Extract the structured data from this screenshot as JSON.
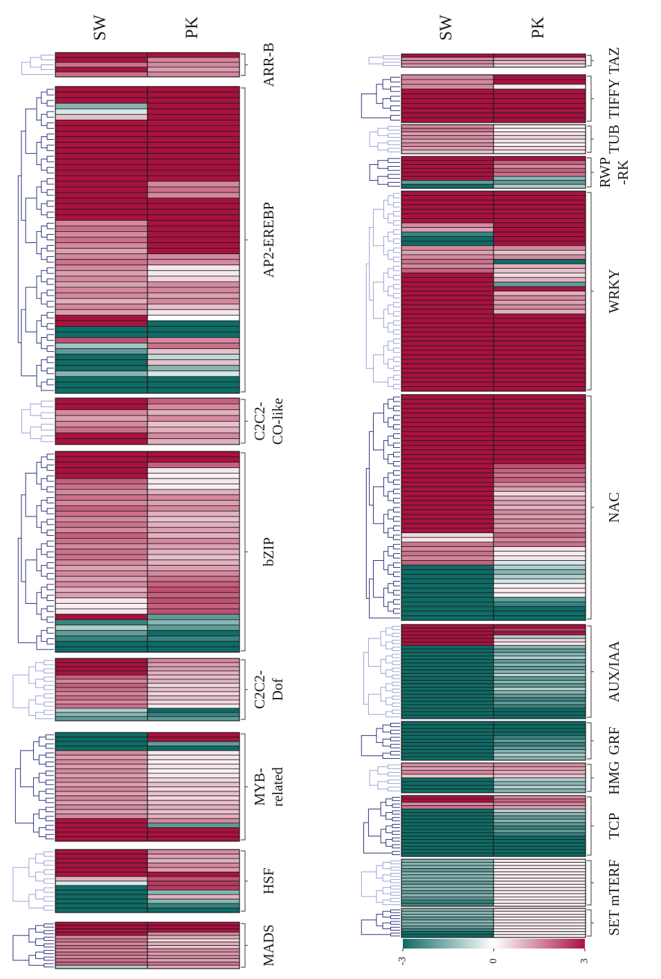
{
  "chart_data": {
    "type": "heatmap",
    "columns": [
      "SW",
      "PK"
    ],
    "color_scale": {
      "min": -3,
      "mid": 0,
      "max": 3,
      "low_color": "#0f6b66",
      "mid_color": "#ffffff",
      "high_color": "#a8123f",
      "ticks": [
        "-3",
        "0",
        "3"
      ]
    },
    "families_left": [
      {
        "name": "ARR-B",
        "label_lines": [
          "ARR-B"
        ],
        "SW": [
          3,
          3,
          1.8,
          3,
          1.8
        ],
        "PK": [
          3,
          1.5,
          1.5,
          1.2,
          1.5
        ]
      },
      {
        "name": "AP2-EREBP",
        "label_lines": [
          "AP2-EREBP"
        ],
        "SW": [
          3,
          3,
          3,
          -1.5,
          -0.5,
          0.8,
          3,
          3,
          3,
          3,
          3,
          3,
          3,
          3,
          3,
          3,
          3,
          3,
          3,
          3,
          3,
          3,
          3,
          3,
          1.5,
          1.8,
          1.5,
          1.8,
          1.5,
          1.2,
          1.5,
          1.8,
          1.5,
          1.2,
          1.5,
          1.2,
          1.5,
          1.5,
          1,
          1.5,
          1.2,
          3,
          3,
          -3,
          -3,
          2.2,
          -1.2,
          -2,
          -3,
          -3,
          -3,
          -1.5,
          -3,
          -3,
          -3
        ],
        "PK": [
          3,
          3,
          3,
          3,
          3,
          3,
          3,
          3,
          3,
          3,
          3,
          3,
          3,
          3,
          3,
          3,
          3,
          1.5,
          1.8,
          1.5,
          3,
          3,
          3,
          3,
          3,
          3,
          3,
          3,
          3,
          3,
          1.5,
          1.5,
          0.3,
          0.3,
          0.5,
          1.5,
          1.5,
          1.2,
          1.5,
          0.8,
          0.3,
          0,
          -3,
          -3,
          -3,
          1.5,
          1.8,
          0.8,
          -0.8,
          0.8,
          -1.5,
          -0.5,
          -3,
          -3,
          -3
        ]
      },
      {
        "name": "C2C2-CO-like",
        "label_lines": [
          "C2C2-",
          "CO-like"
        ],
        "SW": [
          3,
          3,
          1.5,
          1.2,
          1.5,
          1.8,
          3,
          3
        ],
        "PK": [
          2,
          1.5,
          1,
          1.5,
          0.8,
          1,
          1.5,
          1
        ]
      },
      {
        "name": "bZIP",
        "label_lines": [
          "bZIP"
        ],
        "SW": [
          3,
          3,
          3,
          3,
          3,
          2,
          1.8,
          1.5,
          1.8,
          1.5,
          2,
          1.8,
          1.5,
          1.8,
          1.5,
          2,
          1.8,
          1.5,
          1.8,
          1.8,
          1.5,
          1.2,
          1.5,
          1.2,
          1.5,
          1,
          1.2,
          0.3,
          0.2,
          0.3,
          3,
          -2.5,
          -1,
          -2,
          -2.5,
          -3,
          -3
        ],
        "PK": [
          3,
          3,
          2,
          0.3,
          0.2,
          0.3,
          0.2,
          1,
          1.5,
          1.2,
          1.5,
          1,
          0.8,
          1,
          1.2,
          1,
          1.5,
          1.2,
          1,
          0.8,
          1,
          1.2,
          1.5,
          1.8,
          2,
          2.2,
          2,
          2.2,
          2,
          2.2,
          -2,
          -1.5,
          -2,
          -3,
          -2.5,
          -3,
          -3
        ]
      },
      {
        "name": "C2C2-Dof",
        "label_lines": [
          "C2C2-",
          "Dof"
        ],
        "SW": [
          3,
          3,
          3,
          3,
          2,
          1.5,
          2,
          1.8,
          1.5,
          1.8,
          1.5,
          1.8,
          -1,
          -1.5,
          -2
        ],
        "PK": [
          1.5,
          1.2,
          1.2,
          1,
          0.8,
          1,
          0.5,
          0.8,
          0.5,
          0.8,
          0.5,
          0.3,
          -3,
          -2.5,
          -2
        ]
      },
      {
        "name": "MYB-related",
        "label_lines": [
          "MYB-",
          "related"
        ],
        "SW": [
          -3,
          -3,
          -3,
          -3,
          1.5,
          1.2,
          1.5,
          1.2,
          1.5,
          1.2,
          1.5,
          1.2,
          1.5,
          1.2,
          1.5,
          1.2,
          1.5,
          1.2,
          1.5,
          3,
          3,
          3,
          3,
          3
        ],
        "PK": [
          3,
          3,
          -2,
          -3,
          0.3,
          0.3,
          0.2,
          0.3,
          0.2,
          0.3,
          0.5,
          0.8,
          0.5,
          0.8,
          0.5,
          0.8,
          1,
          0.8,
          1,
          1.5,
          -2,
          3,
          3,
          3
        ]
      },
      {
        "name": "HSF",
        "label_lines": [
          "HSF"
        ],
        "SW": [
          3,
          3,
          3,
          3,
          3,
          3,
          1,
          -0.5,
          -3,
          -3,
          -3,
          -3,
          -3,
          -3
        ],
        "PK": [
          1.5,
          1.2,
          1,
          1.5,
          1.2,
          3,
          2.2,
          2.5,
          2.5,
          -1.5,
          1,
          -1.5,
          -2.5,
          -3
        ]
      },
      {
        "name": "MADS",
        "label_lines": [
          "MADS"
        ],
        "SW": [
          3,
          3,
          3,
          3,
          1.5,
          1.8,
          1.5,
          1.8,
          1.5,
          1.8,
          1.5,
          1.8,
          2,
          -1
        ],
        "PK": [
          3,
          3,
          3,
          1.5,
          1,
          0.5,
          1,
          0.8,
          1.5,
          1.2,
          1.5,
          1.2,
          1.8,
          1
        ]
      }
    ],
    "families_right": [
      {
        "name": "TAZ",
        "label_lines": [
          "TAZ"
        ],
        "SW": [
          3,
          1.5,
          1.5,
          1.2
        ],
        "PK": [
          3,
          1.2,
          0.8,
          0.5
        ]
      },
      {
        "name": "TIFFY",
        "label_lines": [
          "TIFFY"
        ],
        "SW": [
          1.5,
          1.5,
          1.5,
          3,
          3,
          3,
          3,
          3,
          3,
          3
        ],
        "PK": [
          3,
          3,
          0.2,
          3,
          3,
          3,
          3,
          3,
          3,
          3
        ]
      },
      {
        "name": "TUB",
        "label_lines": [
          "TUB"
        ],
        "SW": [
          1.5,
          1.8,
          1.2,
          1.5,
          1.2,
          1.5,
          1.2,
          0.8
        ],
        "PK": [
          0.3,
          0.2,
          0.3,
          0.5,
          0.3,
          0.2,
          0.5,
          0.3
        ]
      },
      {
        "name": "RWP-RK",
        "label_lines": [
          "RWP",
          "-RK"
        ],
        "SW": [
          3,
          3,
          3,
          3,
          3,
          3,
          -2,
          -3
        ],
        "PK": [
          3,
          2,
          1.5,
          2,
          1.8,
          -1.5,
          -2,
          -1
        ]
      },
      {
        "name": "WRKY",
        "label_lines": [
          "WRKY"
        ],
        "SW": [
          3,
          3,
          3,
          3,
          3,
          3,
          3,
          1.5,
          1.2,
          -2.5,
          -3,
          -3,
          1.5,
          1.2,
          1.5,
          1.8,
          1.5,
          2,
          3,
          3,
          3,
          3,
          3,
          3,
          3,
          3,
          3,
          3,
          3,
          3,
          3,
          3,
          3,
          3,
          3,
          3,
          3,
          3,
          3,
          3,
          3,
          3,
          3,
          3
        ],
        "PK": [
          3,
          3,
          3,
          3,
          3,
          3,
          3,
          3,
          3,
          3,
          3,
          3,
          1.5,
          0.8,
          1.5,
          -3,
          1,
          0.8,
          0.5,
          1,
          -2,
          3,
          1,
          1.5,
          1.2,
          1.5,
          1,
          3,
          3,
          3,
          3,
          3,
          3,
          3,
          3,
          3,
          3,
          3,
          3,
          3,
          3,
          3,
          3,
          3
        ]
      },
      {
        "name": "NAC",
        "label_lines": [
          "NAC"
        ],
        "SW": [
          3,
          3,
          3,
          3,
          3,
          3,
          3,
          3,
          3,
          3,
          3,
          3,
          3,
          3,
          3,
          3,
          3,
          3,
          3,
          3,
          3,
          3,
          3,
          3,
          3,
          3,
          3,
          3,
          3,
          3,
          0.5,
          0.3,
          1.8,
          1.5,
          1.8,
          1.5,
          2,
          -3,
          -3,
          -3,
          -3,
          -3,
          -3,
          -3,
          -3,
          -3,
          -3,
          -3,
          -3
        ],
        "PK": [
          3,
          3,
          3,
          3,
          3,
          3,
          3,
          3,
          3,
          3,
          3,
          3,
          3,
          3,
          3,
          2.2,
          2,
          1.8,
          2,
          1.5,
          1.2,
          0.5,
          1,
          1.2,
          1,
          1.5,
          1.2,
          1.5,
          1.2,
          1.5,
          2,
          1.5,
          1.8,
          0.3,
          0.2,
          0.3,
          -0.5,
          -1,
          -1.5,
          -1,
          -0.5,
          0.2,
          0.3,
          0.2,
          -2,
          -2.5,
          -3,
          -3,
          -3
        ]
      },
      {
        "name": "AUX/IAA",
        "label_lines": [
          "AUX/IAA"
        ],
        "SW": [
          3,
          3,
          3,
          3,
          3,
          3,
          -3,
          -3,
          -3,
          -3,
          -3,
          -3,
          -3,
          -3,
          -3,
          -3,
          -3,
          -3,
          -3,
          -3,
          -3,
          -3,
          -3,
          -3,
          -3,
          -3,
          -3
        ],
        "PK": [
          3,
          2.5,
          3,
          -1,
          0.5,
          0.3,
          -1.5,
          -2,
          -1.5,
          -1,
          -2,
          -1.5,
          -2,
          -1.5,
          -1,
          -2,
          -1.5,
          -2,
          -1,
          -1.5,
          -2,
          -2.5,
          -2,
          -2.5,
          -3,
          -3,
          -3
        ]
      },
      {
        "name": "GRF",
        "label_lines": [
          "GRF"
        ],
        "SW": [
          -3,
          -3,
          -3,
          -3,
          -3,
          -3,
          -3,
          -3,
          -3,
          -3,
          -3
        ],
        "PK": [
          -3,
          -3,
          -3,
          -3,
          -2.5,
          -2,
          -2.5,
          -2,
          -1.5,
          -1,
          -1.5
        ]
      },
      {
        "name": "HMG",
        "label_lines": [
          "HMG"
        ],
        "SW": [
          1.5,
          1.2,
          1.5,
          0.8,
          -3,
          -3,
          -3,
          -3
        ],
        "PK": [
          1.5,
          1.2,
          1,
          0.8,
          -1,
          -1.5,
          -1,
          -1.5
        ]
      },
      {
        "name": "TCP",
        "label_lines": [
          "TCP"
        ],
        "SW": [
          3,
          3,
          1.5,
          1.8,
          -3,
          -3,
          -3,
          -3,
          -3,
          -3,
          -3,
          -3,
          -3,
          -3,
          -3,
          -3,
          -3,
          -3
        ],
        "PK": [
          1.5,
          2,
          1.5,
          1.2,
          -1,
          -1.5,
          -2,
          -1.5,
          -2,
          -2.5,
          -2,
          -2.5,
          -3,
          -3,
          -3,
          -3,
          -3,
          -3
        ]
      },
      {
        "name": "mTERF",
        "label_lines": [
          "mTERF"
        ],
        "SW": [
          -1.5,
          -1.5,
          -1.5,
          -2,
          -1.5,
          -1.5,
          -1.5,
          -2,
          -1.5,
          -1.5,
          -2,
          -1.5,
          -2,
          -2.5,
          -2.5
        ],
        "PK": [
          0.3,
          0.2,
          0.3,
          0.2,
          0.3,
          0.2,
          0.3,
          0.3,
          0.2,
          0.3,
          0.3,
          0.2,
          0.3,
          0.2,
          0.3
        ]
      },
      {
        "name": "SET",
        "label_lines": [
          "SET"
        ],
        "SW": [
          -1.5,
          -1.5,
          -1.5,
          -2,
          -1.5,
          -1.5,
          -2,
          -2.5,
          -3,
          -3
        ],
        "PK": [
          0.3,
          0.2,
          0.3,
          0.2,
          0.3,
          0.2,
          0.3,
          0.2,
          0.3,
          0.2
        ]
      }
    ]
  },
  "page": {
    "colorbar_min": "-3",
    "colorbar_mid": "0",
    "colorbar_max": "3"
  }
}
